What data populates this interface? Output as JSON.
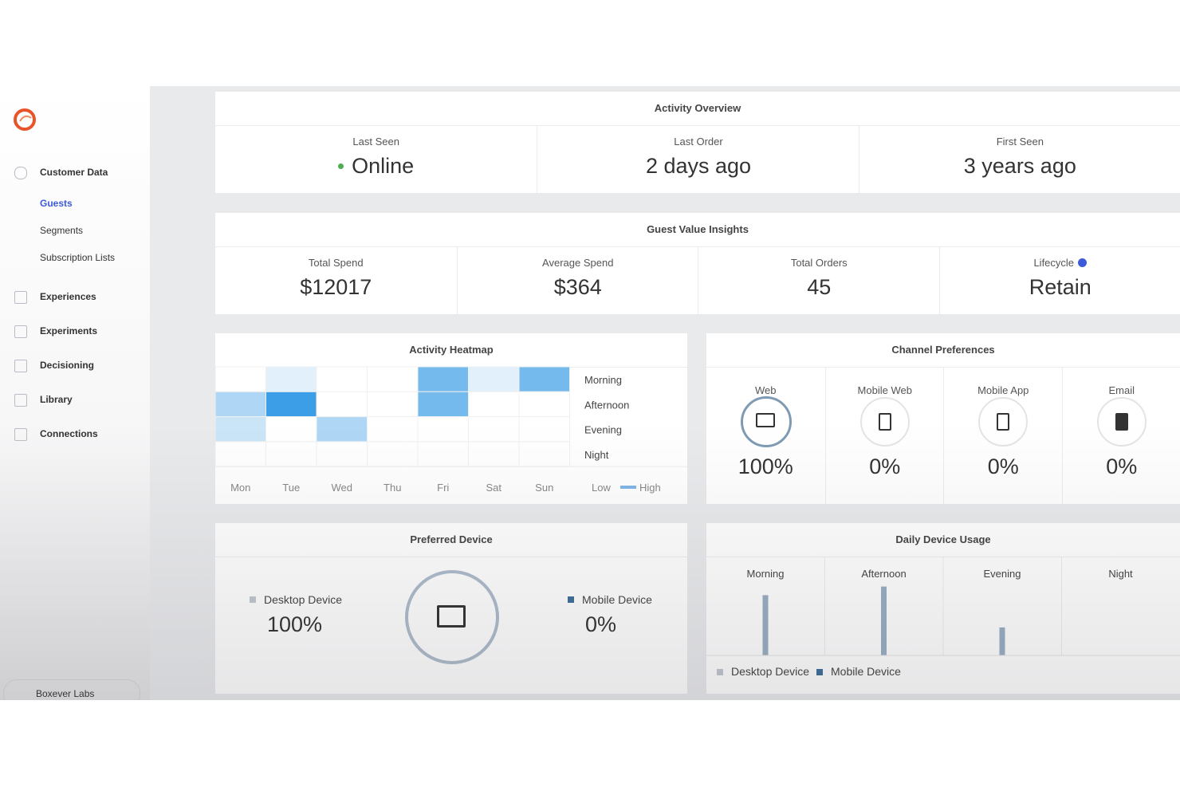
{
  "sidebar": {
    "nav": [
      {
        "label": "Customer Data",
        "children": [
          "Guests",
          "Segments",
          "Subscription Lists"
        ]
      },
      {
        "label": "Experiences"
      },
      {
        "label": "Experiments"
      },
      {
        "label": "Decisioning"
      },
      {
        "label": "Library"
      },
      {
        "label": "Connections"
      }
    ],
    "footer": "Boxever Labs"
  },
  "activity_overview": {
    "title": "Activity Overview",
    "stats": [
      {
        "label": "Last Seen",
        "value": "Online"
      },
      {
        "label": "Last Order",
        "value": "2 days ago"
      },
      {
        "label": "First Seen",
        "value": "3 years ago"
      }
    ]
  },
  "guest_value_insights": {
    "title": "Guest Value Insights",
    "stats": [
      {
        "label": "Total Spend",
        "value": "$12017"
      },
      {
        "label": "Average Spend",
        "value": "$364"
      },
      {
        "label": "Total Orders",
        "value": "45"
      },
      {
        "label": "Lifecycle",
        "value": "Retain"
      }
    ]
  },
  "activity_heatmap": {
    "title": "Activity Heatmap",
    "days": [
      "Mon",
      "Tue",
      "Wed",
      "Thu",
      "Fri",
      "Sat",
      "Sun"
    ],
    "periods": [
      "Morning",
      "Afternoon",
      "Evening",
      "Night"
    ],
    "legend_low": "Low",
    "legend_high": "High",
    "max": 3,
    "intensity": [
      [
        0,
        0.1,
        0,
        0,
        2,
        0.1,
        2
      ],
      [
        1,
        3,
        0,
        0,
        2,
        0,
        0
      ],
      [
        0.5,
        0,
        1,
        0,
        0,
        0,
        0
      ],
      [
        0,
        0,
        0,
        0,
        0,
        0,
        0
      ]
    ]
  },
  "channel_preferences": {
    "title": "Channel Preferences",
    "channels": [
      {
        "name": "Web",
        "value": "100%"
      },
      {
        "name": "Mobile Web",
        "value": "0%"
      },
      {
        "name": "Mobile App",
        "value": "0%"
      },
      {
        "name": "Email",
        "value": "0%"
      }
    ]
  },
  "preferred_device": {
    "title": "Preferred Device",
    "devices": [
      {
        "name": "Desktop Device",
        "value": "100%"
      },
      {
        "name": "Mobile Device",
        "value": "0%"
      }
    ]
  },
  "daily_device_usage": {
    "title": "Daily Device Usage",
    "periods": [
      "Morning",
      "Afternoon",
      "Evening",
      "Night"
    ],
    "ylim": [
      0,
      100
    ],
    "values": [
      84,
      96,
      39,
      0
    ],
    "legend": [
      "Desktop Device",
      "Mobile Device"
    ]
  }
}
